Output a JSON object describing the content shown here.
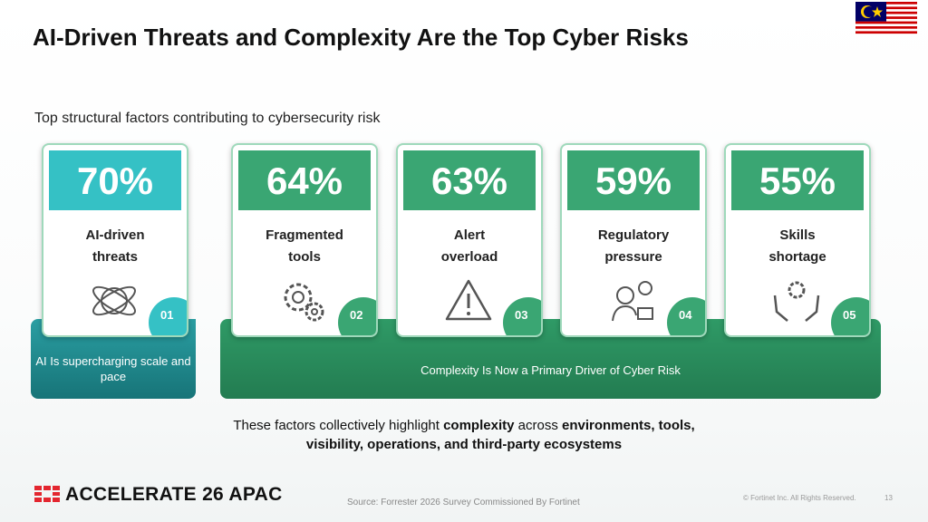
{
  "header": {
    "title": "AI-Driven Threats and Complexity Are the Top Cyber Risks",
    "subtitle": "Top structural factors contributing to cybersecurity risk"
  },
  "cards": [
    {
      "value": "70%",
      "label": [
        "AI-driven",
        "threats"
      ],
      "number": "01"
    },
    {
      "value": "64%",
      "label": [
        "Fragmented",
        "tools"
      ],
      "number": "02"
    },
    {
      "value": "63%",
      "label": [
        "Alert",
        "overload"
      ],
      "number": "03"
    },
    {
      "value": "59%",
      "label": [
        "Regulatory",
        "pressure"
      ],
      "number": "04"
    },
    {
      "value": "55%",
      "label": [
        "Skills",
        "shortage"
      ],
      "number": "05"
    }
  ],
  "groups": {
    "ai": "AI Is supercharging scale and pace",
    "complexity": "Complexity Is Now a Primary Driver of Cyber Risk"
  },
  "conclusion": {
    "line1": [
      "These factors collectively highlight ",
      "complexity",
      " across ",
      "environments, tools,"
    ],
    "line2": "visibility, operations, and third-party ecosystems"
  },
  "footer": {
    "logo": "ACCELERATE 26 APAC",
    "source": "Source: Forrester 2026 Survey Commissioned By Fortinet",
    "copyright": "© Fortinet Inc. All Rights Reserved.",
    "page": "13"
  }
}
